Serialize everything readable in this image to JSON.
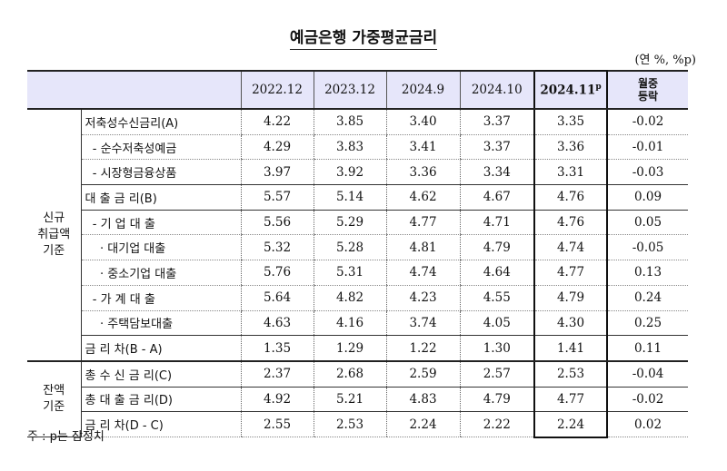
{
  "title": "예금은행 가중평균금리",
  "unit": "(연 %, %p)",
  "columns": [
    "2022.12",
    "2023.12",
    "2024.9",
    "2024.10",
    "2024.11",
    "월중\n등락"
  ],
  "highlight_sup": "p",
  "change_l1": "월중",
  "change_l2": "등락",
  "groups": {
    "new": "신규\n취급액\n기준",
    "balance": "잔액\n기준"
  },
  "rows": [
    {
      "label": "저축성수신금리(A)",
      "values": [
        "4.22",
        "3.85",
        "3.40",
        "3.37",
        "3.35",
        "-0.02"
      ]
    },
    {
      "label": "  - 순수저축성예금",
      "values": [
        "4.29",
        "3.83",
        "3.41",
        "3.37",
        "3.36",
        "-0.01"
      ]
    },
    {
      "label": "  - 시장형금융상품",
      "values": [
        "3.97",
        "3.92",
        "3.36",
        "3.34",
        "3.31",
        "-0.03"
      ]
    },
    {
      "label": "대 출 금 리(B)",
      "values": [
        "5.57",
        "5.14",
        "4.62",
        "4.67",
        "4.76",
        "0.09"
      ]
    },
    {
      "label": "  - 기 업 대 출",
      "values": [
        "5.56",
        "5.29",
        "4.77",
        "4.71",
        "4.76",
        "0.05"
      ]
    },
    {
      "label": "    · 대기업 대출",
      "values": [
        "5.32",
        "5.28",
        "4.81",
        "4.79",
        "4.74",
        "-0.05"
      ]
    },
    {
      "label": "    · 중소기업 대출",
      "values": [
        "5.76",
        "5.31",
        "4.74",
        "4.64",
        "4.77",
        "0.13"
      ]
    },
    {
      "label": "  - 가 계 대 출",
      "values": [
        "5.64",
        "4.82",
        "4.23",
        "4.55",
        "4.79",
        "0.24"
      ]
    },
    {
      "label": "    · 주택담보대출",
      "values": [
        "4.63",
        "4.16",
        "3.74",
        "4.05",
        "4.30",
        "0.25"
      ]
    },
    {
      "label": "금 리 차(B - A)",
      "values": [
        "1.35",
        "1.29",
        "1.22",
        "1.30",
        "1.41",
        "0.11"
      ]
    },
    {
      "label": "총 수 신 금 리(C)",
      "values": [
        "2.37",
        "2.68",
        "2.59",
        "2.57",
        "2.53",
        "-0.04"
      ]
    },
    {
      "label": "총 대 출 금 리(D)",
      "values": [
        "4.92",
        "5.21",
        "4.83",
        "4.79",
        "4.77",
        "-0.02"
      ]
    },
    {
      "label": "금 리 차(D - C)",
      "values": [
        "2.55",
        "2.53",
        "2.24",
        "2.22",
        "2.24",
        "0.02"
      ]
    }
  ],
  "note": "주 : p는 잠정치"
}
